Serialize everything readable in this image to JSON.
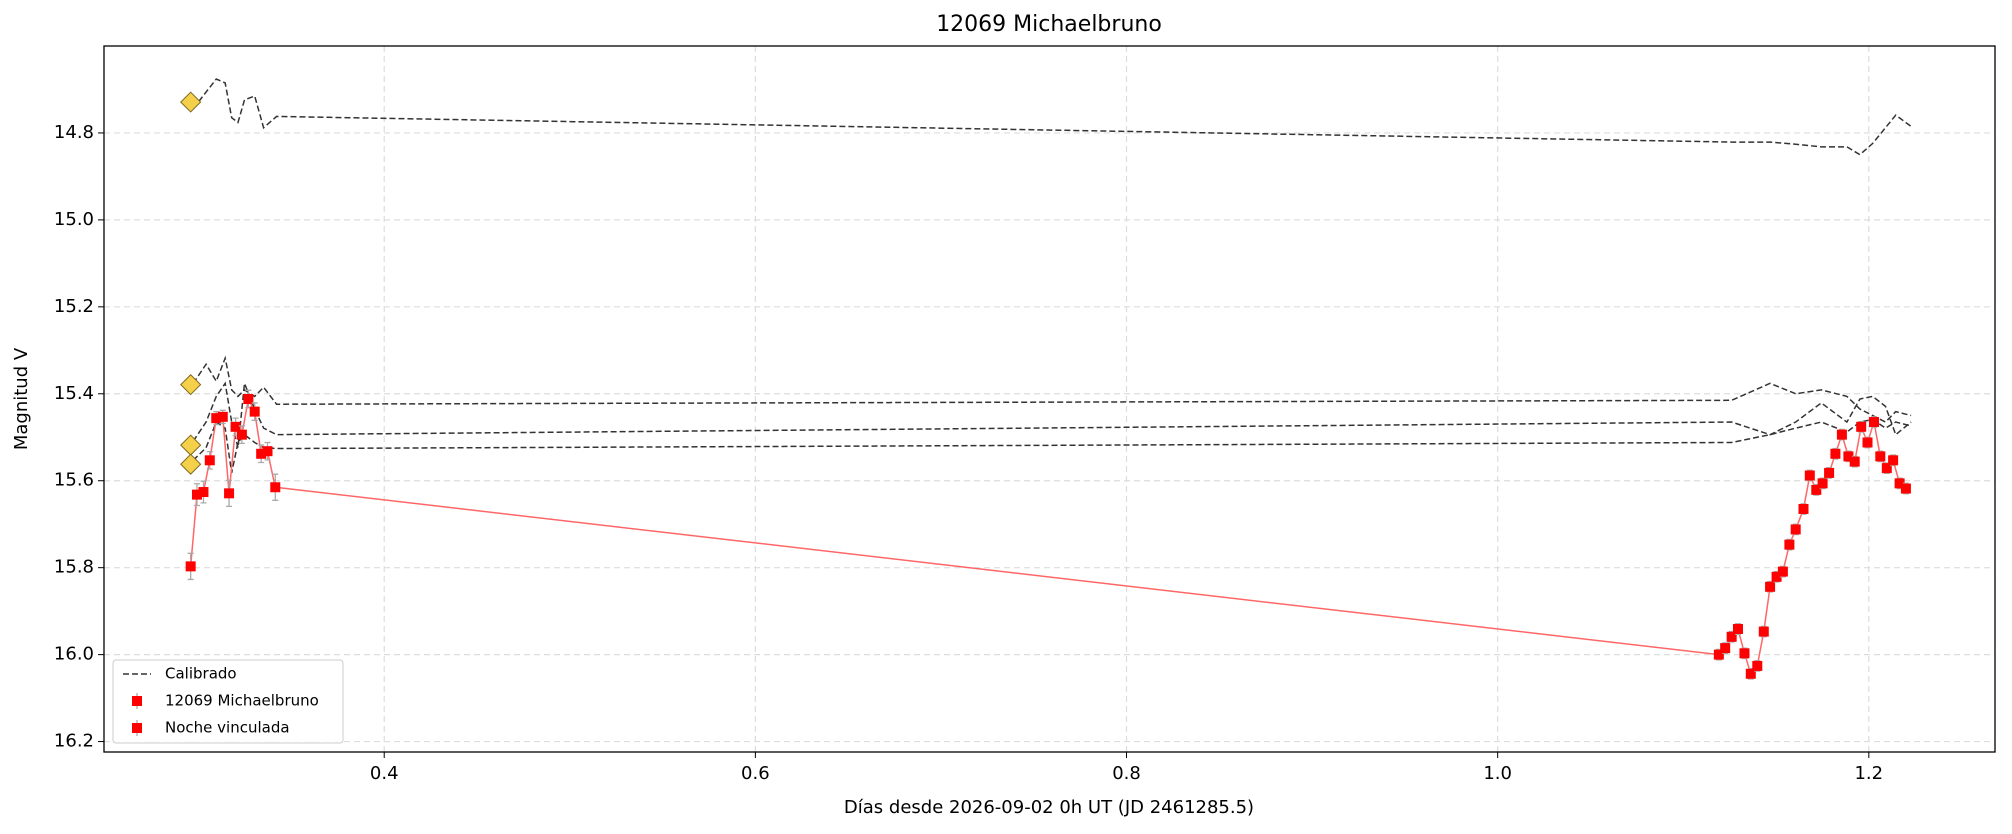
{
  "chart_data": {
    "type": "scatter",
    "title": "12069 Michaelbruno",
    "x_label": "Días desde 2026-09-02 0h UT (JD 2461285.5)",
    "y_label": "Magnitud V",
    "xlim": [
      0.249,
      1.268
    ],
    "ylim": [
      14.6,
      16.224
    ],
    "invert_y": true,
    "grid": true,
    "legend": "lower left",
    "xticks": [
      0.4,
      0.6,
      0.8,
      {
        "value": 1,
        "label": "1.0"
      },
      1.2
    ],
    "yticks": [
      14.8,
      {
        "value": 15,
        "label": "15.0"
      },
      15.2,
      15.4,
      15.6,
      15.8,
      {
        "value": 16,
        "label": "16.0"
      },
      16.2
    ],
    "calibrated": {
      "name": "Calibrado",
      "color": "#333333",
      "x": [
        0.2971,
        0.304,
        0.3095,
        0.3143,
        0.3178,
        0.3212,
        0.3247,
        0.3302,
        0.335,
        0.342,
        1.1261,
        1.1468,
        1.1606,
        1.1744,
        1.1882,
        1.1952,
        1.2021,
        1.209,
        1.2145,
        1.2228
      ],
      "lines": [
        [
          14.744,
          14.706,
          14.676,
          14.685,
          14.765,
          14.776,
          14.724,
          14.715,
          14.788,
          14.762,
          14.821,
          14.821,
          14.826,
          14.832,
          14.832,
          14.85,
          14.824,
          14.788,
          14.759,
          14.785
        ],
        [
          15.376,
          15.332,
          15.371,
          15.318,
          15.391,
          15.406,
          15.391,
          15.406,
          15.385,
          15.424,
          15.415,
          15.376,
          15.4,
          15.391,
          15.406,
          15.435,
          15.45,
          15.465,
          15.441,
          15.45
        ],
        [
          15.509,
          15.465,
          15.406,
          15.376,
          15.465,
          15.524,
          15.376,
          15.435,
          15.479,
          15.494,
          15.465,
          15.494,
          15.465,
          15.421,
          15.465,
          15.412,
          15.406,
          15.429,
          15.494,
          15.465
        ],
        [
          15.553,
          15.524,
          15.465,
          15.479,
          15.582,
          15.512,
          15.494,
          15.512,
          15.524,
          15.526,
          15.512,
          15.494,
          15.479,
          15.465,
          15.488,
          15.465,
          15.459,
          15.479,
          15.465,
          15.474
        ]
      ]
    },
    "reference_points": {
      "color": "#f5d04a",
      "x": [
        0.2957,
        0.2957,
        0.2957,
        0.2957
      ],
      "values": [
        14.729,
        15.379,
        15.518,
        15.562
      ]
    },
    "line_color": "#ff6666",
    "error_color": "#aaaaaa",
    "series": [
      {
        "name": "12069 Michaelbruno",
        "color": "#ff0000",
        "x": [
          0.2957,
          0.2991,
          0.3026,
          0.306,
          0.3095,
          0.313,
          0.3164,
          0.3199,
          0.3233,
          0.3268,
          0.3302,
          0.3337,
          0.3371,
          0.3413
        ],
        "values": [
          15.797,
          15.632,
          15.626,
          15.553,
          15.456,
          15.453,
          15.629,
          15.476,
          15.494,
          15.412,
          15.441,
          15.538,
          15.532,
          15.615
        ],
        "errors": [
          0.03,
          0.025,
          0.025,
          0.02,
          0.015,
          0.015,
          0.03,
          0.02,
          0.02,
          0.02,
          0.02,
          0.02,
          0.02,
          0.03
        ]
      },
      {
        "name": "Noche vinculada",
        "color": "#ff0000",
        "x": [
          1.1192,
          1.1226,
          1.1261,
          1.1295,
          1.133,
          1.1364,
          1.1399,
          1.1434,
          1.1468,
          1.1503,
          1.1537,
          1.1572,
          1.1606,
          1.1648,
          1.1682,
          1.1717,
          1.1751,
          1.1786,
          1.182,
          1.1855,
          1.189,
          1.1924,
          1.1959,
          1.1993,
          1.2028,
          1.2062,
          1.2097,
          1.2131,
          1.2166,
          1.22
        ],
        "values": [
          16.0,
          15.985,
          15.959,
          15.941,
          15.997,
          16.044,
          16.026,
          15.947,
          15.844,
          15.821,
          15.809,
          15.747,
          15.712,
          15.665,
          15.588,
          15.621,
          15.606,
          15.582,
          15.538,
          15.494,
          15.544,
          15.556,
          15.476,
          15.512,
          15.465,
          15.544,
          15.571,
          15.553,
          15.606,
          15.618
        ],
        "errors": [
          0.012,
          0.012,
          0.012,
          0.012,
          0.012,
          0.012,
          0.012,
          0.012,
          0.012,
          0.012,
          0.012,
          0.012,
          0.012,
          0.012,
          0.012,
          0.012,
          0.012,
          0.012,
          0.012,
          0.012,
          0.012,
          0.012,
          0.012,
          0.012,
          0.012,
          0.012,
          0.012,
          0.012,
          0.012,
          0.012
        ]
      }
    ]
  }
}
